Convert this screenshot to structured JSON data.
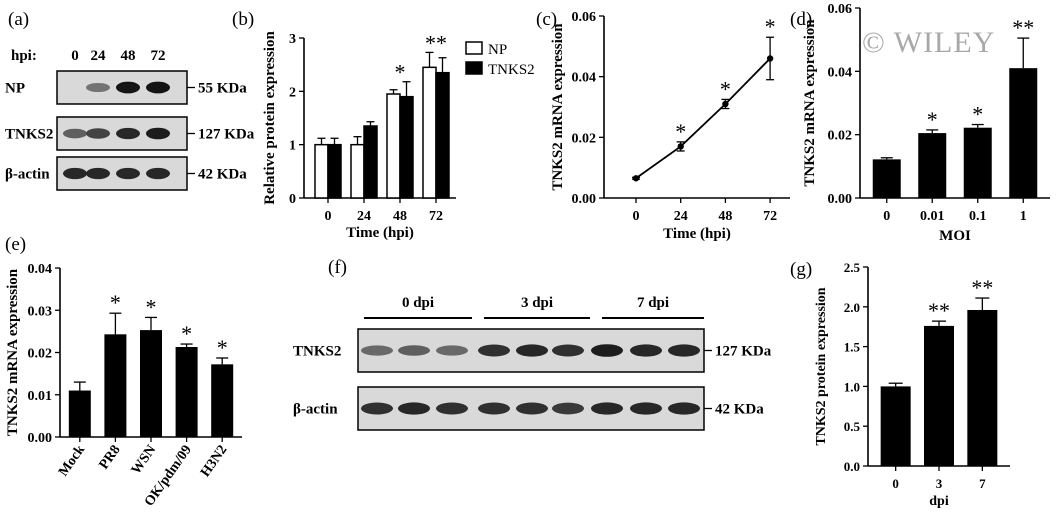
{
  "watermark": "© WILEY",
  "panels": {
    "a": {
      "label": "(a)",
      "hpi_label": "hpi:",
      "lane_labels": [
        "0",
        "24",
        "48",
        "72"
      ],
      "rows": [
        {
          "name": "NP",
          "size": "55 KDa",
          "bands": [
            0.0,
            0.45,
            0.95,
            0.95
          ]
        },
        {
          "name": "TNKS2",
          "size": "127 KDa",
          "bands": [
            0.55,
            0.7,
            0.85,
            0.9
          ]
        },
        {
          "name": "β-actin",
          "size": "42 KDa",
          "bands": [
            0.85,
            0.85,
            0.85,
            0.85
          ]
        }
      ]
    },
    "b": {
      "label": "(b)"
    },
    "c": {
      "label": "(c)"
    },
    "d": {
      "label": "(d)"
    },
    "e": {
      "label": "(e)"
    },
    "f": {
      "label": "(f)",
      "groups": [
        "0 dpi",
        "3 dpi",
        "7 dpi"
      ],
      "rows": [
        {
          "name": "TNKS2",
          "size": "127 KDa",
          "bands": [
            0.5,
            0.55,
            0.5,
            0.8,
            0.85,
            0.8,
            0.9,
            0.85,
            0.85
          ]
        },
        {
          "name": "β-actin",
          "size": "42 KDa",
          "bands": [
            0.8,
            0.85,
            0.8,
            0.8,
            0.8,
            0.75,
            0.85,
            0.85,
            0.85
          ]
        }
      ]
    },
    "g": {
      "label": "(g)"
    }
  },
  "chart_data": [
    {
      "id": "b",
      "type": "bar",
      "categories": [
        "0",
        "24",
        "48",
        "72"
      ],
      "series": [
        {
          "name": "NP",
          "values": [
            1.0,
            1.0,
            1.95,
            2.45
          ],
          "errors": [
            0.12,
            0.15,
            0.08,
            0.28
          ],
          "color": "#ffffff"
        },
        {
          "name": "TNKS2",
          "values": [
            1.0,
            1.35,
            1.9,
            2.35
          ],
          "errors": [
            0.12,
            0.08,
            0.28,
            0.28
          ],
          "color": "#000000"
        }
      ],
      "annotations": [
        {
          "category": "48",
          "text": "*"
        },
        {
          "category": "72",
          "text": "**"
        }
      ],
      "xlabel": "Time (hpi)",
      "ylabel": "Relative protein expression",
      "ylim": [
        0,
        3
      ],
      "yticks": [
        "0",
        "1",
        "2",
        "3"
      ],
      "legend": "top-right"
    },
    {
      "id": "c",
      "type": "line",
      "x": [
        "0",
        "24",
        "48",
        "72"
      ],
      "values": [
        0.0065,
        0.017,
        0.031,
        0.046
      ],
      "errors": [
        0.0003,
        0.0015,
        0.0015,
        0.007
      ],
      "annotations": [
        "",
        "*",
        "*",
        "*"
      ],
      "xlabel": "Time (hpi)",
      "ylabel": "TNKS2 mRNA expression",
      "ylim": [
        0,
        0.06
      ],
      "yticks": [
        "0.00",
        "0.02",
        "0.04",
        "0.06"
      ]
    },
    {
      "id": "d",
      "type": "bar",
      "categories": [
        "0",
        "0.01",
        "0.1",
        "1"
      ],
      "values": [
        0.0122,
        0.0205,
        0.0222,
        0.041
      ],
      "errors": [
        0.0005,
        0.001,
        0.001,
        0.0095
      ],
      "annotations": [
        "",
        "*",
        "*",
        "**"
      ],
      "xlabel": "MOI",
      "ylabel": "TNKS2 mRNA expression",
      "ylim": [
        0,
        0.06
      ],
      "yticks": [
        "0.00",
        "0.02",
        "0.04",
        "0.06"
      ]
    },
    {
      "id": "e",
      "type": "bar",
      "categories": [
        "Mock",
        "PR8",
        "WSN",
        "OK/pdm/09",
        "H3N2"
      ],
      "values": [
        0.011,
        0.0243,
        0.0253,
        0.0213,
        0.0172
      ],
      "errors": [
        0.002,
        0.005,
        0.003,
        0.0007,
        0.0015
      ],
      "annotations": [
        "",
        "*",
        "*",
        "*",
        "*"
      ],
      "xlabel": "",
      "ylabel": "TNKS2 mRNA expression",
      "ylim": [
        0,
        0.04
      ],
      "yticks": [
        "0.00",
        "0.01",
        "0.02",
        "0.03",
        "0.04"
      ]
    },
    {
      "id": "g",
      "type": "bar",
      "categories": [
        "0",
        "3",
        "7"
      ],
      "values": [
        1.0,
        1.76,
        1.96
      ],
      "errors": [
        0.04,
        0.06,
        0.15
      ],
      "annotations": [
        "",
        "**",
        "**"
      ],
      "xlabel": "dpi",
      "ylabel": "TNKS2 protein expression",
      "ylim": [
        0,
        2.5
      ],
      "yticks": [
        "0.0",
        "0.5",
        "1.0",
        "1.5",
        "2.0",
        "2.5"
      ]
    }
  ]
}
